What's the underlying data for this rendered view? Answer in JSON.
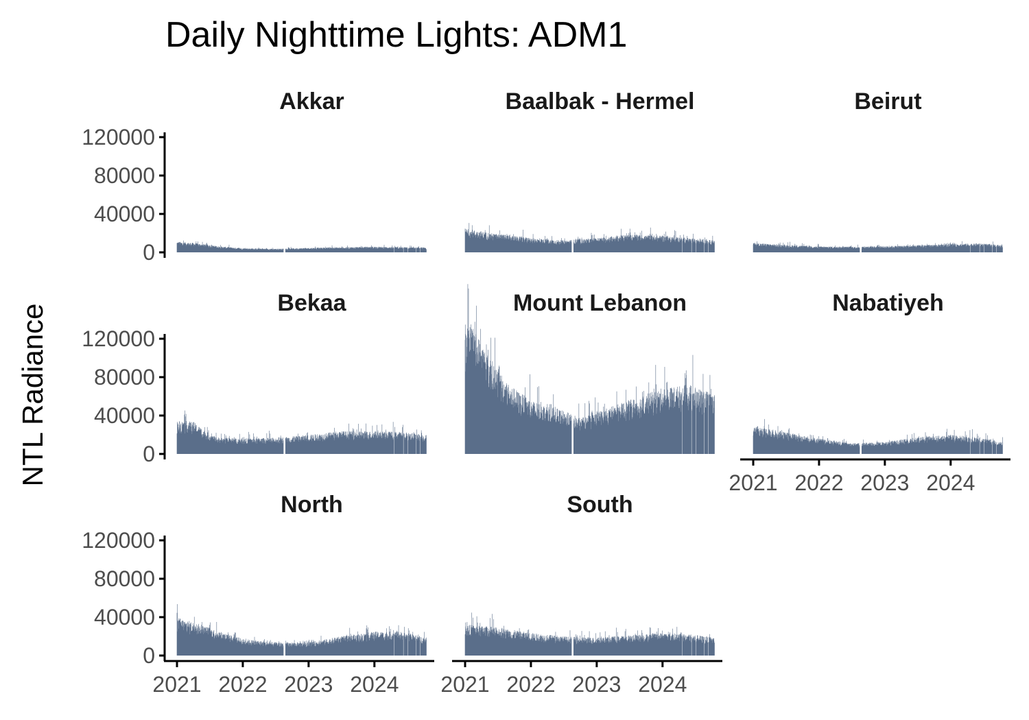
{
  "chart_data": {
    "type": "bar",
    "title": "Daily Nighttime Lights: ADM1",
    "xlabel": "",
    "ylabel": "NTL Radiance",
    "ylim": [
      0,
      125000
    ],
    "y_ticks": [
      0,
      40000,
      80000,
      120000
    ],
    "y_tick_labels": [
      "0",
      "40000",
      "80000",
      "120000"
    ],
    "x_range": [
      "2021-01-01",
      "2024-10-15"
    ],
    "x_ticks": [
      "2021-01-01",
      "2022-01-01",
      "2023-01-01",
      "2024-01-01"
    ],
    "x_tick_labels": [
      "2021",
      "2022",
      "2023",
      "2024"
    ],
    "bar_color": "#5a6e8a",
    "panels": [
      {
        "name": "Akkar",
        "trend": [
          [
            "2021-01-01",
            9000
          ],
          [
            "2021-04-01",
            8000
          ],
          [
            "2021-09-01",
            5000
          ],
          [
            "2022-01-01",
            3500
          ],
          [
            "2022-07-01",
            3000
          ],
          [
            "2023-01-01",
            3800
          ],
          [
            "2023-07-01",
            4300
          ],
          [
            "2024-01-01",
            4800
          ],
          [
            "2024-05-01",
            4500
          ],
          [
            "2024-10-15",
            4000
          ]
        ]
      },
      {
        "name": "Baalbak - Hermel",
        "trend": [
          [
            "2021-01-01",
            20000
          ],
          [
            "2021-06-01",
            16000
          ],
          [
            "2022-01-01",
            12000
          ],
          [
            "2022-07-01",
            10000
          ],
          [
            "2023-01-01",
            12000
          ],
          [
            "2023-07-01",
            15000
          ],
          [
            "2024-01-01",
            14000
          ],
          [
            "2024-06-01",
            12000
          ],
          [
            "2024-10-15",
            10000
          ]
        ]
      },
      {
        "name": "Beirut",
        "trend": [
          [
            "2021-01-01",
            8000
          ],
          [
            "2021-06-01",
            6500
          ],
          [
            "2022-01-01",
            5000
          ],
          [
            "2022-07-01",
            4800
          ],
          [
            "2023-01-01",
            5300
          ],
          [
            "2023-07-01",
            6000
          ],
          [
            "2024-01-01",
            7000
          ],
          [
            "2024-06-01",
            7600
          ],
          [
            "2024-10-15",
            6000
          ]
        ]
      },
      {
        "name": "Bekaa",
        "trend": [
          [
            "2021-01-01",
            28000
          ],
          [
            "2021-04-01",
            27000
          ],
          [
            "2021-06-01",
            20000
          ],
          [
            "2021-08-01",
            14000
          ],
          [
            "2022-01-01",
            13000
          ],
          [
            "2022-07-01",
            13500
          ],
          [
            "2023-01-01",
            16000
          ],
          [
            "2023-07-01",
            19000
          ],
          [
            "2024-01-01",
            19000
          ],
          [
            "2024-06-01",
            18500
          ],
          [
            "2024-10-15",
            16000
          ]
        ]
      },
      {
        "name": "Mount Lebanon",
        "trend": [
          [
            "2021-01-01",
            112000
          ],
          [
            "2021-03-01",
            102000
          ],
          [
            "2021-06-01",
            78000
          ],
          [
            "2021-09-01",
            58000
          ],
          [
            "2022-01-01",
            45000
          ],
          [
            "2022-07-01",
            36000
          ],
          [
            "2022-10-01",
            30000
          ],
          [
            "2023-01-01",
            35000
          ],
          [
            "2023-07-01",
            45000
          ],
          [
            "2024-01-01",
            55000
          ],
          [
            "2024-06-01",
            58000
          ],
          [
            "2024-10-15",
            50000
          ]
        ]
      },
      {
        "name": "Nabatiyeh",
        "trend": [
          [
            "2021-01-01",
            24000
          ],
          [
            "2021-06-01",
            19000
          ],
          [
            "2022-01-01",
            13000
          ],
          [
            "2022-07-01",
            9000
          ],
          [
            "2023-01-01",
            10000
          ],
          [
            "2023-07-01",
            14000
          ],
          [
            "2024-01-01",
            16000
          ],
          [
            "2024-06-01",
            14000
          ],
          [
            "2024-10-15",
            10000
          ]
        ]
      },
      {
        "name": "North",
        "trend": [
          [
            "2021-01-01",
            32000
          ],
          [
            "2021-04-01",
            28000
          ],
          [
            "2021-09-01",
            20000
          ],
          [
            "2022-01-01",
            14000
          ],
          [
            "2022-07-01",
            11000
          ],
          [
            "2023-01-01",
            11000
          ],
          [
            "2023-07-01",
            16000
          ],
          [
            "2024-01-01",
            20000
          ],
          [
            "2024-06-01",
            20000
          ],
          [
            "2024-10-15",
            15000
          ]
        ]
      },
      {
        "name": "South",
        "trend": [
          [
            "2021-01-01",
            26000
          ],
          [
            "2021-06-01",
            24000
          ],
          [
            "2022-01-01",
            19000
          ],
          [
            "2022-07-01",
            16000
          ],
          [
            "2023-01-01",
            15000
          ],
          [
            "2023-07-01",
            17000
          ],
          [
            "2024-01-01",
            19000
          ],
          [
            "2024-06-01",
            18000
          ],
          [
            "2024-10-15",
            15000
          ]
        ]
      }
    ]
  }
}
